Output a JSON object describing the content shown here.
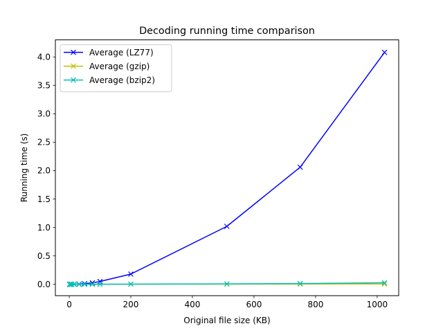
{
  "chart_data": {
    "type": "line",
    "title": "Decoding running time comparison",
    "xlabel": "Original file size (KB)",
    "ylabel": "Running time (s)",
    "xlim": [
      -45,
      1070
    ],
    "ylim": [
      -0.2,
      4.3
    ],
    "xticks": [
      0,
      200,
      400,
      600,
      800,
      1000
    ],
    "yticks": [
      0.0,
      0.5,
      1.0,
      1.5,
      2.0,
      2.5,
      3.0,
      3.5,
      4.0
    ],
    "xtick_labels": [
      "0",
      "200",
      "400",
      "600",
      "800",
      "1000"
    ],
    "ytick_labels": [
      "0.0",
      "0.5",
      "1.0",
      "1.5",
      "2.0",
      "2.5",
      "3.0",
      "3.5",
      "4.0"
    ],
    "grid": false,
    "legend_position": "top-left",
    "marker": "x",
    "series": [
      {
        "name": "Average (LZ77)",
        "color": "#0000ff",
        "x": [
          1,
          2,
          4,
          8,
          16,
          32,
          50,
          75,
          100,
          200,
          512,
          750,
          1024
        ],
        "y": [
          0.0,
          0.0,
          0.0,
          0.001,
          0.002,
          0.005,
          0.012,
          0.025,
          0.05,
          0.18,
          1.02,
          2.06,
          4.08
        ]
      },
      {
        "name": "Average (gzip)",
        "color": "#bfbf00",
        "x": [
          1,
          2,
          4,
          8,
          16,
          32,
          50,
          75,
          100,
          200,
          512,
          750,
          1024
        ],
        "y": [
          0.0,
          0.0,
          0.0,
          0.0,
          0.0,
          0.0,
          0.0,
          0.0,
          0.001,
          0.002,
          0.004,
          0.005,
          0.007
        ]
      },
      {
        "name": "Average (bzip2)",
        "color": "#00bfbf",
        "x": [
          1,
          2,
          4,
          8,
          16,
          32,
          50,
          75,
          100,
          200,
          512,
          750,
          1024
        ],
        "y": [
          0.0,
          0.0,
          0.0,
          0.0,
          0.001,
          0.001,
          0.001,
          0.002,
          0.002,
          0.004,
          0.008,
          0.014,
          0.027
        ]
      }
    ]
  }
}
